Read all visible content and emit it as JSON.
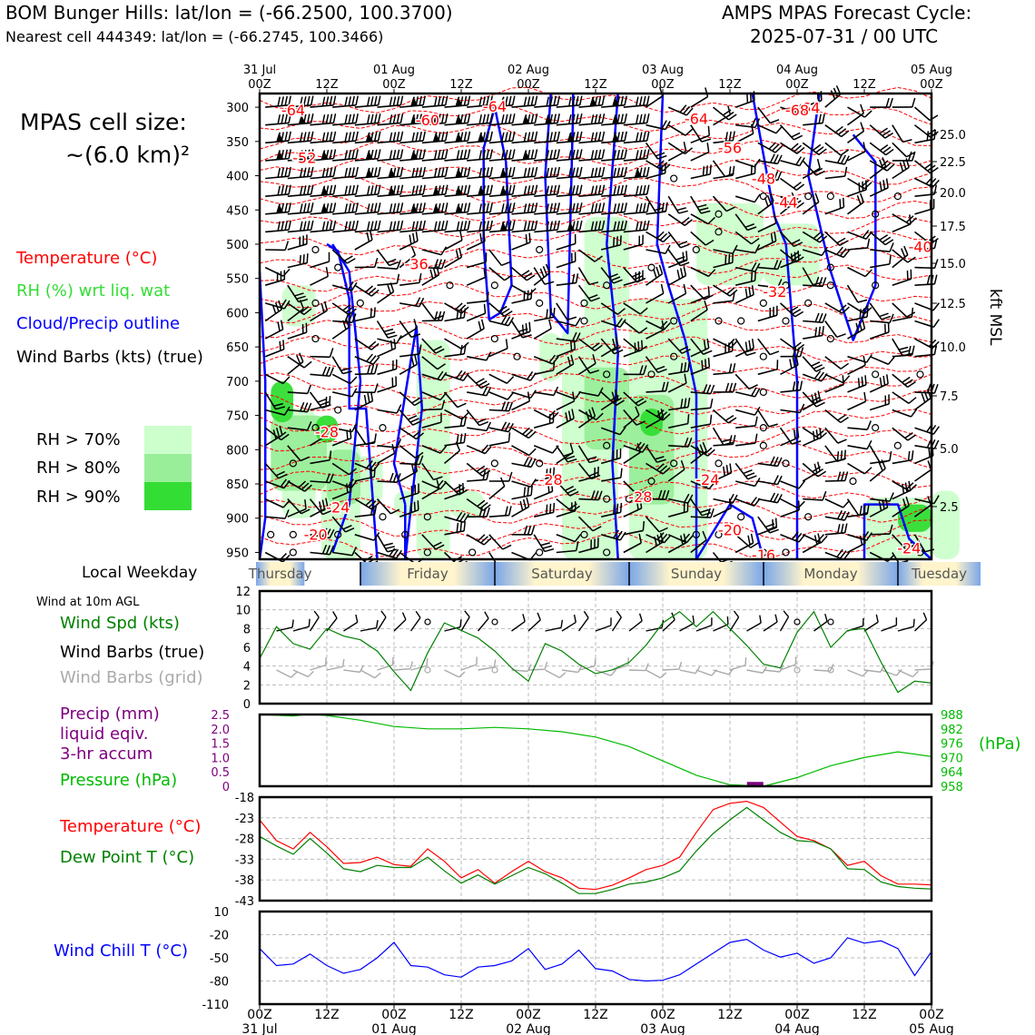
{
  "header": {
    "left_line1": "BOM Bunger Hills: lat/lon = (-66.2500, 100.3700)",
    "left_line2": "Nearest cell 444349: lat/lon = (-66.2745, 100.3466)",
    "right_line1": "AMPS MPAS Forecast Cycle:",
    "right_line2": "2025-07-31 / 00 UTC"
  },
  "cell_size": {
    "line1": "MPAS cell size:",
    "line2": "~(6.0 km)²"
  },
  "legend": {
    "temperature": "Temperature (°C)",
    "rh": "RH (%) wrt liq. wat",
    "cloud": "Cloud/Precip outline",
    "wind": "Wind Barbs (kts) (true)",
    "rh70": "RH > 70%",
    "rh80": "RH > 80%",
    "rh90": "RH > 90%"
  },
  "colors": {
    "temperature": "#ff0000",
    "rh_label": "#33dd33",
    "cloud": "#0000ff",
    "rh70": "#ccffcc",
    "rh80": "#99ee99",
    "rh90": "#33dd33",
    "precip": "#800080",
    "pressure": "#00bb00",
    "dewpoint": "#008000",
    "windchill": "#0000ff"
  },
  "time_axis": {
    "top_dates": [
      "31 Jul",
      "01 Aug",
      "02 Aug",
      "03 Aug",
      "04 Aug",
      "05 Aug"
    ],
    "hour_labels": [
      "00Z",
      "12Z",
      "00Z",
      "12Z",
      "00Z",
      "12Z",
      "00Z",
      "12Z",
      "00Z",
      "12Z",
      "00Z"
    ],
    "bottom_dates": [
      "31 Jul",
      "01 Aug",
      "02 Aug",
      "03 Aug",
      "04 Aug",
      "05 Aug"
    ]
  },
  "weekday": {
    "label": "Local Weekday",
    "days": [
      "Thursday",
      "Friday",
      "Saturday",
      "Sunday",
      "Monday",
      "Tuesday"
    ]
  },
  "panel_labels": {
    "wind_header": "Wind at 10m AGL",
    "wind_spd": "Wind Spd (kts)",
    "barbs_true": "Wind Barbs (true)",
    "barbs_grid": "Wind Barbs (grid)",
    "precip_1": "Precip (mm)",
    "precip_2": "liquid eqiv.",
    "precip_3": "3-hr accum",
    "pressure": "Pressure (hPa)",
    "pressure_unit": "(hPa)",
    "temp": "Temperature (°C)",
    "dew": "Dew Point T (°C)",
    "windchill": "Wind Chill T (°C)",
    "kft": "kft MSL"
  },
  "chart_data": [
    {
      "type": "heatmap",
      "name": "profile",
      "y_left_ticks": [
        "300",
        "350",
        "400",
        "450",
        "500",
        "550",
        "600",
        "650",
        "700",
        "750",
        "800",
        "850",
        "900",
        "950"
      ],
      "y_right_ticks": [
        "25.0",
        "22.5",
        "20.0",
        "17.5",
        "15.0",
        "12.5",
        "10.0",
        "7.5",
        "5.0",
        "2.5"
      ],
      "temperature_labels": [
        {
          "t": 3,
          "p": 305,
          "v": "-64"
        },
        {
          "t": 15,
          "p": 320,
          "v": "-60"
        },
        {
          "t": 21,
          "p": 300,
          "v": "-64"
        },
        {
          "t": 39,
          "p": 318,
          "v": "-64"
        },
        {
          "t": 49,
          "p": 302,
          "v": "-64"
        },
        {
          "t": 48,
          "p": 305,
          "v": "-68"
        },
        {
          "t": 42,
          "p": 360,
          "v": "-56"
        },
        {
          "t": 4,
          "p": 375,
          "v": "-52"
        },
        {
          "t": 45,
          "p": 405,
          "v": "-48"
        },
        {
          "t": 47,
          "p": 440,
          "v": "-44"
        },
        {
          "t": 59,
          "p": 505,
          "v": "-40"
        },
        {
          "t": 14,
          "p": 530,
          "v": "-36"
        },
        {
          "t": 46,
          "p": 570,
          "v": "-32"
        },
        {
          "t": 6,
          "p": 775,
          "v": "-28"
        },
        {
          "t": 26,
          "p": 845,
          "v": "-28"
        },
        {
          "t": 34,
          "p": 870,
          "v": "-28"
        },
        {
          "t": 40,
          "p": 845,
          "v": "-24"
        },
        {
          "t": 7,
          "p": 885,
          "v": "-24"
        },
        {
          "t": 58,
          "p": 945,
          "v": "-24"
        },
        {
          "t": 5,
          "p": 925,
          "v": "-20"
        },
        {
          "t": 42,
          "p": 918,
          "v": "-20"
        },
        {
          "t": 45,
          "p": 955,
          "v": "-16"
        }
      ]
    },
    {
      "type": "line",
      "name": "wind_speed",
      "ylim": [
        0,
        12
      ],
      "y_ticks": [
        "0",
        "2",
        "4",
        "6",
        "8",
        "10",
        "12"
      ],
      "x_hours": [
        0,
        3,
        6,
        9,
        12,
        15,
        18,
        21,
        24,
        27,
        30,
        33,
        36,
        39,
        42,
        45,
        48,
        51,
        54,
        57,
        60,
        63,
        66,
        69,
        72,
        75,
        78,
        81,
        84,
        87,
        90,
        93,
        96,
        99,
        102,
        105,
        108,
        111,
        114,
        117,
        120
      ],
      "values": [
        4.8,
        8.2,
        6.4,
        5.8,
        8.0,
        7.2,
        6.8,
        5.6,
        3.4,
        1.4,
        5.4,
        8.6,
        7.8,
        7.0,
        5.6,
        3.8,
        2.4,
        6.4,
        5.6,
        4.2,
        3.2,
        3.6,
        4.4,
        6.2,
        8.6,
        9.8,
        8.2,
        9.8,
        8.0,
        6.2,
        4.2,
        3.8,
        7.6,
        9.8,
        6.0,
        7.8,
        8.0,
        4.4,
        1.2,
        2.4,
        2.2
      ]
    },
    {
      "type": "line",
      "name": "pressure_precip",
      "precip_ticks": [
        "0",
        "0.5",
        "1.0",
        "1.5",
        "2.0",
        "2.5"
      ],
      "pressure_ticks": [
        "958",
        "964",
        "970",
        "976",
        "982",
        "988"
      ],
      "x_hours": [
        0,
        6,
        9,
        12,
        15,
        18,
        24,
        30,
        36,
        42,
        48,
        54,
        60,
        66,
        72,
        78,
        84,
        90,
        96,
        102,
        108,
        114,
        120
      ],
      "pressure": [
        988.0,
        987.4,
        988.2,
        987.6,
        986.6,
        985.6,
        983.0,
        982.0,
        982.0,
        982.6,
        982.0,
        980.8,
        978.6,
        974.6,
        968.6,
        962.6,
        958.6,
        958.0,
        961.6,
        966.6,
        970.0,
        972.4,
        970.4
      ],
      "precip": [
        {
          "x_hour": 88.5,
          "value": 0.15
        }
      ]
    },
    {
      "type": "line",
      "name": "temperature_dewpoint",
      "ylim": [
        -43,
        -18
      ],
      "y_ticks": [
        "-18",
        "-23",
        "-28",
        "-33",
        "-38",
        "-43"
      ],
      "x_hours": [
        0,
        3,
        6,
        9,
        12,
        15,
        18,
        21,
        24,
        27,
        30,
        33,
        36,
        39,
        42,
        45,
        48,
        51,
        54,
        57,
        60,
        63,
        66,
        69,
        72,
        75,
        78,
        81,
        84,
        87,
        90,
        93,
        96,
        99,
        102,
        105,
        108,
        111,
        114,
        117,
        120
      ],
      "series": [
        {
          "name": "Temperature (°C)",
          "values": [
            -23.5,
            -28.5,
            -30.5,
            -26.5,
            -30.0,
            -34.0,
            -33.8,
            -32.5,
            -34.3,
            -34.7,
            -30.5,
            -33.5,
            -37.5,
            -35.5,
            -38.8,
            -36.0,
            -33.5,
            -36.0,
            -37.5,
            -40.0,
            -40.3,
            -39.3,
            -37.5,
            -35.5,
            -34.5,
            -32.5,
            -26.5,
            -21.0,
            -19.5,
            -19.0,
            -20.5,
            -24.0,
            -27.5,
            -28.5,
            -30.5,
            -34.5,
            -33.5,
            -37.0,
            -39.0,
            -39.0,
            -39.2
          ]
        },
        {
          "name": "Dew Point T (°C)",
          "values": [
            -27.5,
            -29.8,
            -31.8,
            -28.0,
            -31.5,
            -35.3,
            -36.0,
            -34.5,
            -35.0,
            -35.0,
            -32.5,
            -35.8,
            -38.8,
            -36.8,
            -39.0,
            -37.0,
            -35.0,
            -36.5,
            -38.8,
            -41.3,
            -41.3,
            -40.3,
            -39.0,
            -38.5,
            -37.5,
            -35.8,
            -31.0,
            -26.8,
            -23.5,
            -20.5,
            -23.5,
            -26.5,
            -28.5,
            -28.8,
            -30.5,
            -35.3,
            -35.5,
            -38.5,
            -39.6,
            -40.0,
            -40.2
          ]
        }
      ]
    },
    {
      "type": "line",
      "name": "wind_chill",
      "ylim": [
        -110,
        10
      ],
      "y_ticks": [
        "10",
        "-20",
        "-50",
        "-80",
        "-110"
      ],
      "x_hours": [
        0,
        3,
        6,
        9,
        12,
        15,
        18,
        21,
        24,
        27,
        30,
        33,
        36,
        39,
        42,
        45,
        48,
        51,
        54,
        57,
        60,
        63,
        66,
        69,
        72,
        75,
        78,
        81,
        84,
        87,
        90,
        93,
        96,
        99,
        102,
        105,
        108,
        111,
        114,
        117,
        120
      ],
      "values": [
        -38,
        -60,
        -58,
        -45,
        -60,
        -70,
        -65,
        -50,
        -30,
        -60,
        -62,
        -72,
        -75,
        -62,
        -60,
        -54,
        -38,
        -65,
        -58,
        -40,
        -64,
        -67,
        -78,
        -80,
        -79,
        -72,
        -58,
        -44,
        -30,
        -26,
        -40,
        -49,
        -44,
        -57,
        -50,
        -24,
        -31,
        -28,
        -38,
        -73,
        -42
      ]
    }
  ]
}
